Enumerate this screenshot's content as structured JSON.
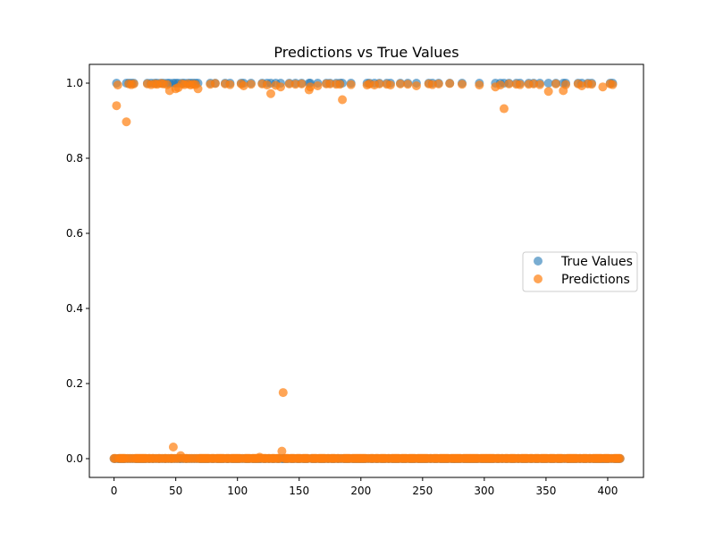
{
  "chart_data": {
    "type": "scatter",
    "title": "Predictions vs True Values",
    "xlabel": "",
    "ylabel": "",
    "xlim": [
      -20,
      429
    ],
    "ylim": [
      -0.05,
      1.05
    ],
    "x_ticks": [
      0,
      50,
      100,
      150,
      200,
      250,
      300,
      350,
      400
    ],
    "y_ticks": [
      0.0,
      0.2,
      0.4,
      0.6,
      0.8,
      1.0
    ],
    "x_tick_labels": [
      "0",
      "50",
      "100",
      "150",
      "200",
      "250",
      "300",
      "350",
      "400"
    ],
    "y_tick_labels": [
      "0.0",
      "0.2",
      "0.4",
      "0.6",
      "0.8",
      "1.0"
    ],
    "grid": false,
    "legend_position": "center-right",
    "series": [
      {
        "name": "True Values",
        "color": "#1f77b4",
        "opacity": 0.6,
        "x_range": [
          0,
          410
        ],
        "ones_x": [
          2,
          10,
          12,
          14,
          16,
          27,
          30,
          33,
          35,
          38,
          40,
          43,
          45,
          48,
          50,
          52,
          55,
          57,
          60,
          62,
          64,
          66,
          68,
          78,
          82,
          90,
          94,
          103,
          105,
          111,
          120,
          124,
          127,
          131,
          135,
          142,
          147,
          152,
          158,
          159,
          165,
          172,
          175,
          180,
          183,
          185,
          192,
          205,
          207,
          211,
          215,
          221,
          224,
          232,
          238,
          245,
          255,
          258,
          263,
          272,
          282,
          296,
          309,
          313,
          316,
          320,
          326,
          329,
          336,
          340,
          345,
          352,
          358,
          364,
          366,
          376,
          379,
          384,
          387,
          402,
          404
        ],
        "zeros_note": "all remaining x in 0-410 have true value 0"
      },
      {
        "name": "Predictions",
        "color": "#ff7f0e",
        "opacity": 0.7,
        "high_points": [
          [
            2,
            0.94
          ],
          [
            3,
            0.995
          ],
          [
            10,
            0.897
          ],
          [
            12,
            0.998
          ],
          [
            14,
            0.996
          ],
          [
            16,
            0.998
          ],
          [
            27,
            0.998
          ],
          [
            30,
            0.996
          ],
          [
            33,
            0.998
          ],
          [
            35,
            0.997
          ],
          [
            38,
            0.999
          ],
          [
            40,
            0.998
          ],
          [
            43,
            0.996
          ],
          [
            45,
            0.98
          ],
          [
            48,
            0.99
          ],
          [
            50,
            0.985
          ],
          [
            52,
            0.988
          ],
          [
            55,
            0.998
          ],
          [
            57,
            0.996
          ],
          [
            60,
            0.998
          ],
          [
            62,
            0.995
          ],
          [
            64,
            0.997
          ],
          [
            66,
            0.996
          ],
          [
            68,
            0.985
          ],
          [
            78,
            0.997
          ],
          [
            82,
            0.999
          ],
          [
            90,
            0.998
          ],
          [
            94,
            0.996
          ],
          [
            103,
            0.998
          ],
          [
            105,
            0.993
          ],
          [
            111,
            0.997
          ],
          [
            120,
            0.998
          ],
          [
            124,
            0.995
          ],
          [
            127,
            0.972
          ],
          [
            131,
            0.994
          ],
          [
            135,
            0.99
          ],
          [
            142,
            0.998
          ],
          [
            147,
            0.997
          ],
          [
            152,
            0.998
          ],
          [
            158,
            0.982
          ],
          [
            159,
            0.99
          ],
          [
            165,
            0.993
          ],
          [
            172,
            0.998
          ],
          [
            175,
            0.998
          ],
          [
            180,
            0.997
          ],
          [
            185,
            0.956
          ],
          [
            192,
            0.996
          ],
          [
            205,
            0.995
          ],
          [
            207,
            0.998
          ],
          [
            211,
            0.995
          ],
          [
            215,
            0.998
          ],
          [
            221,
            0.997
          ],
          [
            224,
            0.995
          ],
          [
            232,
            0.998
          ],
          [
            238,
            0.997
          ],
          [
            245,
            0.993
          ],
          [
            255,
            0.998
          ],
          [
            258,
            0.996
          ],
          [
            263,
            0.998
          ],
          [
            272,
            0.999
          ],
          [
            282,
            0.997
          ],
          [
            296,
            0.995
          ],
          [
            309,
            0.99
          ],
          [
            313,
            0.995
          ],
          [
            316,
            0.932
          ],
          [
            320,
            0.998
          ],
          [
            326,
            0.997
          ],
          [
            329,
            0.996
          ],
          [
            336,
            0.997
          ],
          [
            340,
            0.998
          ],
          [
            345,
            0.996
          ],
          [
            352,
            0.978
          ],
          [
            358,
            0.998
          ],
          [
            364,
            0.98
          ],
          [
            366,
            0.996
          ],
          [
            376,
            0.998
          ],
          [
            379,
            0.993
          ],
          [
            384,
            0.998
          ],
          [
            387,
            0.997
          ],
          [
            396,
            0.99
          ],
          [
            402,
            0.998
          ],
          [
            404,
            0.996
          ]
        ],
        "low_outliers": [
          [
            48,
            0.031
          ],
          [
            54,
            0.008
          ],
          [
            118,
            0.004
          ],
          [
            136,
            0.02
          ],
          [
            137,
            0.176
          ]
        ],
        "low_note": "all remaining x in 0-410 have predictions near 0.0"
      }
    ]
  }
}
